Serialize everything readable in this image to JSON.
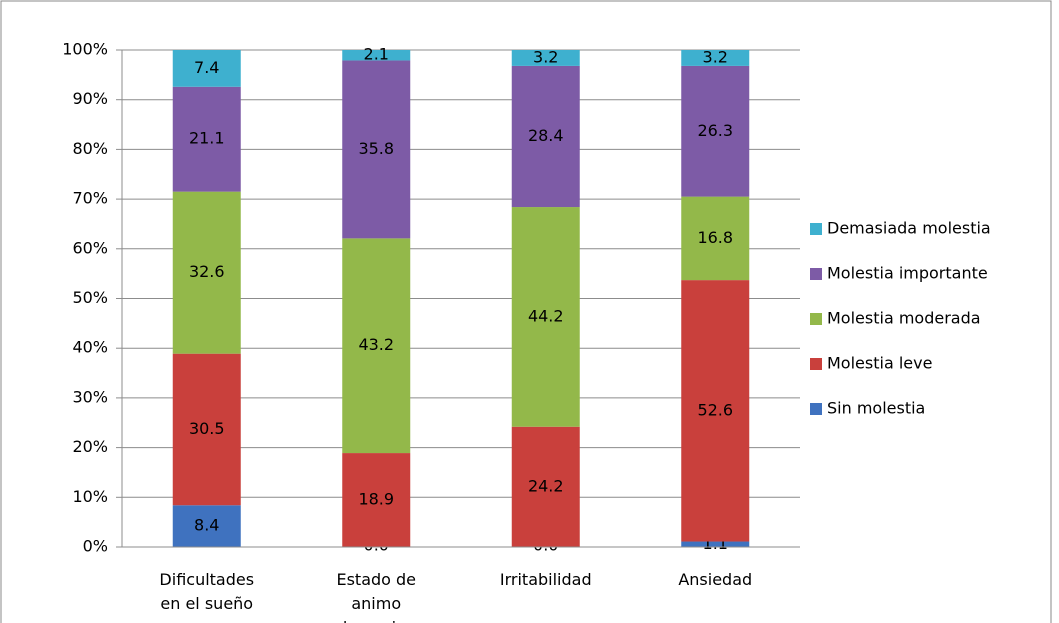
{
  "chart_data": {
    "type": "stacked_bar",
    "categories": [
      "Dificultades en el sueño",
      "Estado de animo depresivo",
      "Irritabilidad",
      "Ansiedad"
    ],
    "series": [
      {
        "name": "Sin molestia",
        "color": "#3f72bf",
        "values": [
          8.4,
          0.0,
          0.0,
          1.1
        ],
        "value_labels": [
          "8.4",
          "0.0",
          "0.0",
          "1.1"
        ]
      },
      {
        "name": "Molestia leve",
        "color": "#c9403c",
        "values": [
          30.5,
          18.9,
          24.2,
          52.6
        ],
        "value_labels": [
          "30.5",
          "18.9",
          "24.2",
          "52.6"
        ]
      },
      {
        "name": "Molestia moderada",
        "color": "#93b84a",
        "values": [
          32.6,
          43.2,
          44.2,
          16.8
        ],
        "value_labels": [
          "32.6",
          "43.2",
          "44.2",
          "16.8"
        ]
      },
      {
        "name": "Molestia importante",
        "color": "#7d5ba6",
        "values": [
          21.1,
          35.8,
          28.4,
          26.3
        ],
        "value_labels": [
          "21.1",
          "35.8",
          "28.4",
          "26.3"
        ]
      },
      {
        "name": "Demasiada molestia",
        "color": "#3eb0cf",
        "values": [
          7.4,
          2.1,
          3.2,
          3.2
        ],
        "value_labels": [
          "7.4",
          "2.1",
          "3.2",
          "3.2"
        ]
      }
    ],
    "ylim": [
      0,
      100
    ],
    "yticks": [
      {
        "value": 0,
        "label": "0%"
      },
      {
        "value": 10,
        "label": "10%"
      },
      {
        "value": 20,
        "label": "20%"
      },
      {
        "value": 30,
        "label": "30%"
      },
      {
        "value": 40,
        "label": "40%"
      },
      {
        "value": 50,
        "label": "50%"
      },
      {
        "value": 60,
        "label": "60%"
      },
      {
        "value": 70,
        "label": "70%"
      },
      {
        "value": 80,
        "label": "80%"
      },
      {
        "value": 90,
        "label": "90%"
      },
      {
        "value": 100,
        "label": "100%"
      }
    ],
    "grid": true,
    "legend": "right"
  }
}
